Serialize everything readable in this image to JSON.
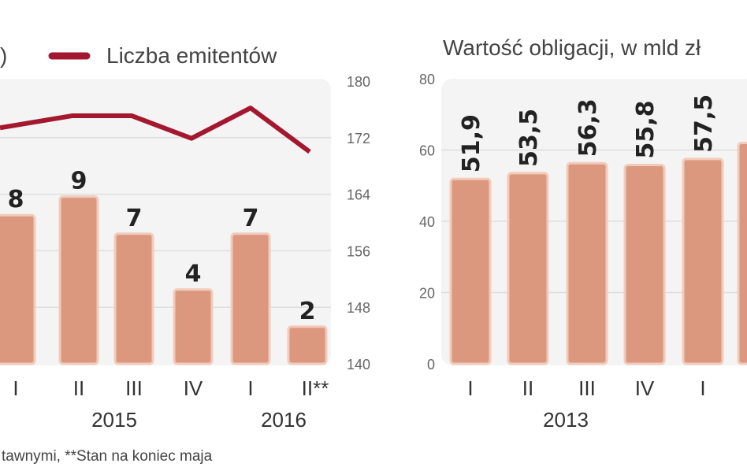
{
  "chart_data": [
    {
      "type": "bar+line",
      "title_fragment": ")",
      "legend": [
        {
          "name": "Liczba emitentów",
          "color": "#a3182f",
          "position": "top"
        }
      ],
      "categories": [
        "I",
        "II",
        "III",
        "IV",
        "I",
        "II**"
      ],
      "year_labels": [
        "2015",
        "2016"
      ],
      "bars": {
        "values": [
          8,
          9,
          7,
          4,
          7,
          2
        ],
        "color": "#dc987e",
        "labels": [
          "8",
          "9",
          "7",
          "4",
          "7",
          "2"
        ]
      },
      "line": {
        "name": "Liczba emitentów",
        "values": [
          173.4,
          175.1,
          175.1,
          171.9,
          176.2,
          170.0
        ],
        "color": "#a3182f"
      },
      "y2_ticks": [
        "180",
        "172",
        "164",
        "156",
        "148",
        "140"
      ],
      "y2lim": [
        140,
        180
      ],
      "grid": true
    },
    {
      "type": "bar",
      "title": "Wartość obligacji, w mld zł",
      "categories": [
        "I",
        "II",
        "III",
        "IV",
        "I",
        ""
      ],
      "year_labels": [
        "2013"
      ],
      "values": [
        51.9,
        53.5,
        56.3,
        55.8,
        57.5,
        62
      ],
      "labels": [
        "51,9",
        "53,5",
        "56,3",
        "55,8",
        "57,5",
        ""
      ],
      "y_ticks": [
        "80",
        "60",
        "40",
        "20",
        "0"
      ],
      "ylim": [
        0,
        80
      ],
      "color": "#dc987e",
      "grid": true
    }
  ],
  "footnote": "tawnymi, **Stan na koniec maja"
}
